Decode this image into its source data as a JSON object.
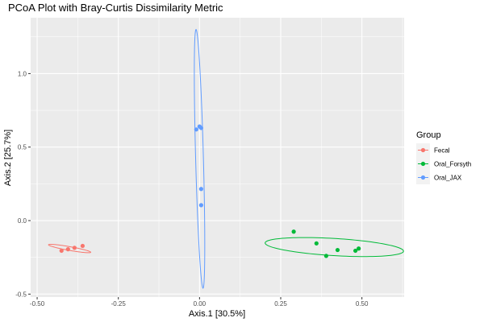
{
  "chart_data": {
    "type": "scatter",
    "title": "PCoA Plot with Bray-Curtis Dissimilarity Metric",
    "xlabel": "Axis.1   [30.5%]",
    "ylabel": "Axis.2   [25.7%]",
    "xlim": [
      -0.52,
      0.63
    ],
    "ylim": [
      -0.52,
      1.38
    ],
    "x_ticks": [
      -0.5,
      -0.25,
      0.0,
      0.25,
      0.5
    ],
    "x_tick_labels": [
      "-0.50",
      "-0.25",
      "0.00",
      "0.25",
      "0.50"
    ],
    "y_ticks": [
      -0.5,
      0.0,
      0.5,
      1.0
    ],
    "y_tick_labels": [
      "-0.5",
      "0.0",
      "0.5",
      "1.0"
    ],
    "grid": true,
    "legend": {
      "title": "Group",
      "position": "right"
    },
    "series": [
      {
        "name": "Fecal",
        "color": "#F8766D",
        "points": [
          {
            "x": -0.425,
            "y": -0.205
          },
          {
            "x": -0.405,
            "y": -0.195
          },
          {
            "x": -0.385,
            "y": -0.185
          },
          {
            "x": -0.36,
            "y": -0.172
          }
        ],
        "ellipse": {
          "cx": -0.4,
          "cy": -0.19,
          "rx": 0.07,
          "ry": 0.012,
          "angle_deg": -22
        }
      },
      {
        "name": "Oral_Forsyth",
        "color": "#00BA38",
        "points": [
          {
            "x": 0.29,
            "y": -0.075
          },
          {
            "x": 0.36,
            "y": -0.155
          },
          {
            "x": 0.39,
            "y": -0.24
          },
          {
            "x": 0.425,
            "y": -0.2
          },
          {
            "x": 0.48,
            "y": -0.205
          },
          {
            "x": 0.49,
            "y": -0.19
          }
        ],
        "ellipse": {
          "cx": 0.415,
          "cy": -0.18,
          "rx": 0.215,
          "ry": 0.058,
          "angle_deg": -8
        }
      },
      {
        "name": "Oral_JAX",
        "color": "#619CFF",
        "points": [
          {
            "x": -0.01,
            "y": 0.62
          },
          {
            "x": 0.005,
            "y": 0.63
          },
          {
            "x": 0.0,
            "y": 0.64
          },
          {
            "x": 0.005,
            "y": 0.215
          },
          {
            "x": 0.005,
            "y": 0.105
          }
        ],
        "ellipse": {
          "cx": 0.0,
          "cy": 0.42,
          "rx": 0.88,
          "ry": 0.012,
          "angle_deg": -89.3
        }
      }
    ]
  }
}
